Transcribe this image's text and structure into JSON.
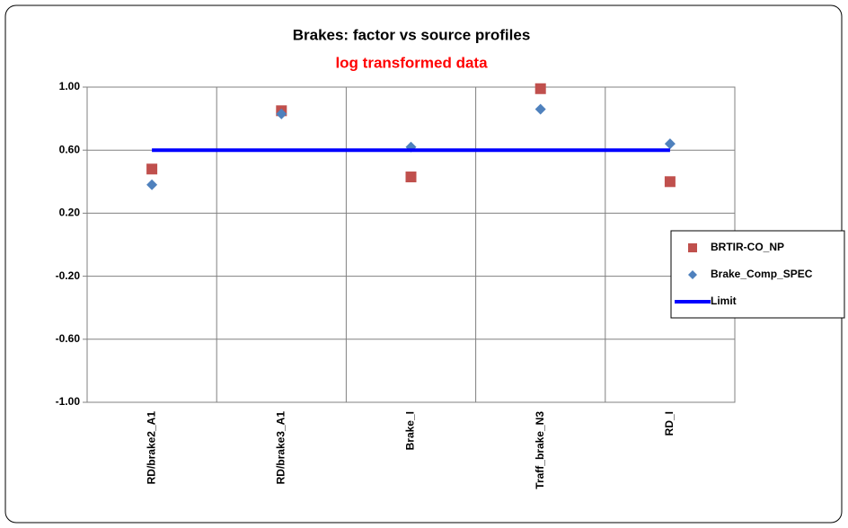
{
  "chart_data": {
    "type": "scatter",
    "title": "Brakes: factor vs source profiles",
    "subtitle": "log transformed data",
    "categories": [
      "RD/brake2_A1",
      "RD/brake3_A1",
      "Brake_I",
      "Traff_brake_N3",
      "RD_I"
    ],
    "series": [
      {
        "name": "BRTIR-CO_NP",
        "color": "#c0504d",
        "marker": "square",
        "values": [
          0.48,
          0.85,
          0.43,
          0.99,
          0.4
        ]
      },
      {
        "name": "Brake_Comp_SPEC",
        "color": "#4f81bd",
        "marker": "diamond",
        "values": [
          0.38,
          0.83,
          0.62,
          0.86,
          0.64
        ]
      },
      {
        "name": "Limit",
        "color": "#0000ff",
        "marker": "line",
        "values": [
          0.6,
          0.6,
          0.6,
          0.6,
          0.6
        ]
      }
    ],
    "ylim": [
      -1,
      1
    ],
    "yticks": [
      {
        "value": -1,
        "label": "-1.00"
      },
      {
        "value": -0.6,
        "label": "-0.60"
      },
      {
        "value": -0.2,
        "label": "-0.20"
      },
      {
        "value": 0.2,
        "label": "0.20"
      },
      {
        "value": 0.6,
        "label": "0.60"
      },
      {
        "value": 1,
        "label": "1.00"
      }
    ],
    "grid": true,
    "legend": "right"
  }
}
